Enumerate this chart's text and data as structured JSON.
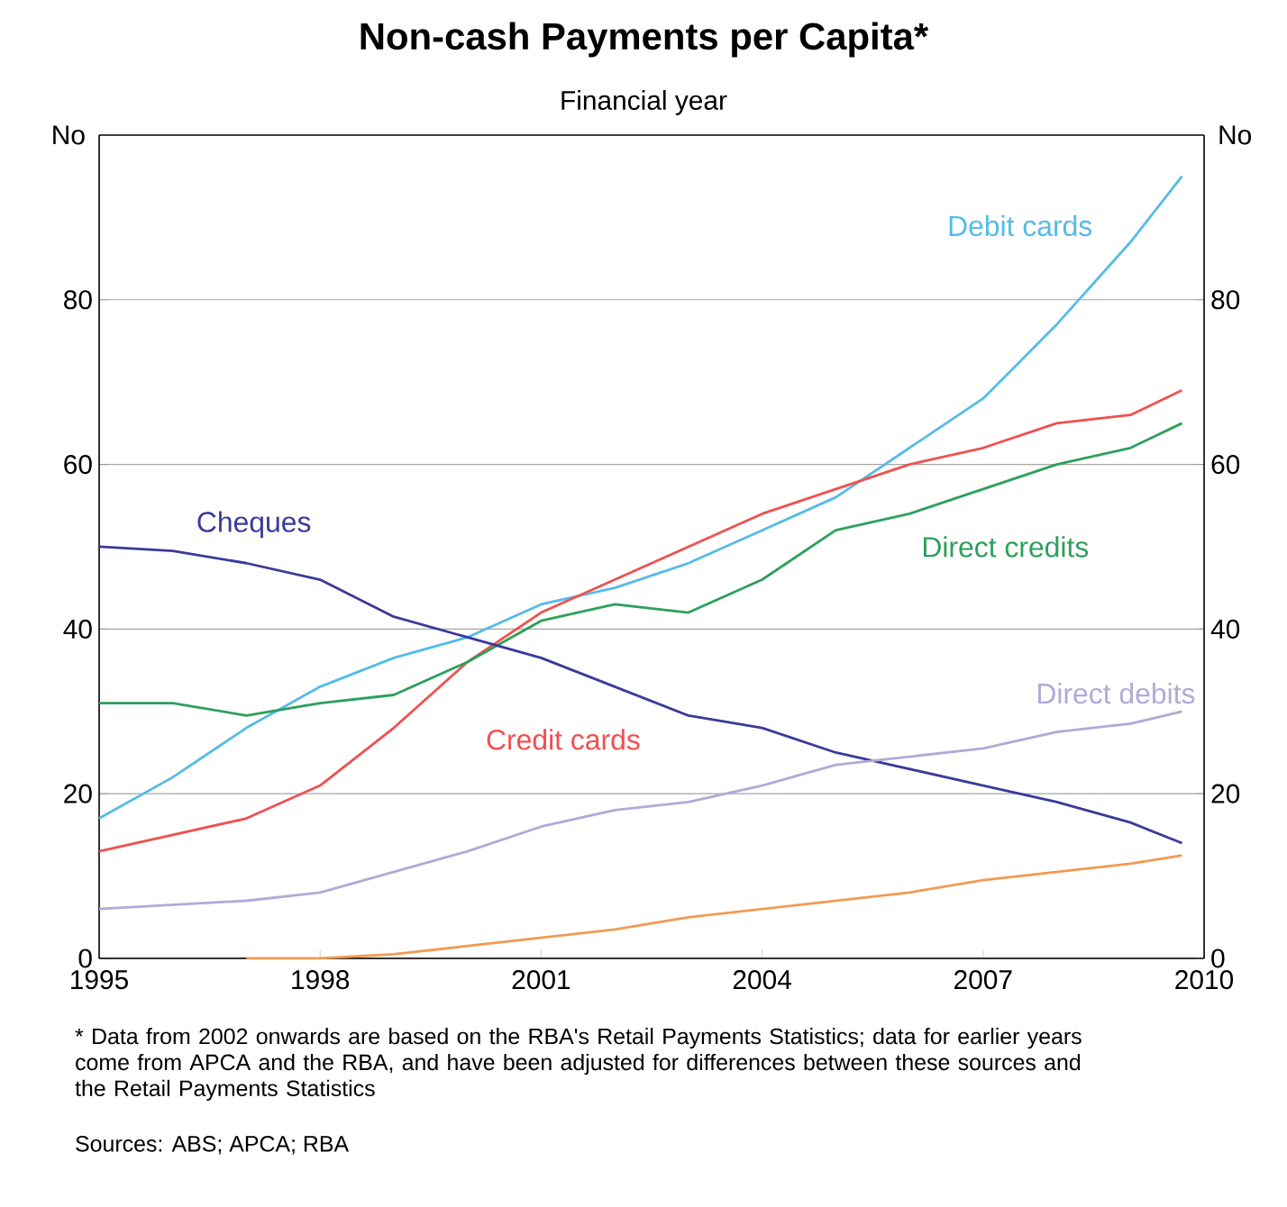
{
  "chart_data": {
    "type": "line",
    "title": "Non-cash Payments per Capita*",
    "subtitle": "Financial year",
    "ylabel": "No",
    "y2label": "No",
    "x": [
      1995,
      1996,
      1997,
      1998,
      1999,
      2000,
      2001,
      2002,
      2003,
      2004,
      2005,
      2006,
      2007,
      2008,
      2009,
      2009.7
    ],
    "series": [
      {
        "name": "Debit cards",
        "color": "#55bbe8",
        "values": [
          17,
          22,
          28,
          33,
          36.5,
          39,
          43,
          45,
          48,
          52,
          56,
          62,
          68,
          77,
          87,
          95
        ]
      },
      {
        "name": "Credit cards",
        "color": "#f05050",
        "values": [
          13,
          15,
          17,
          21,
          28,
          36,
          42,
          46,
          50,
          54,
          57,
          60,
          62,
          65,
          66,
          69
        ]
      },
      {
        "name": "Direct credits",
        "color": "#2ca05a",
        "values": [
          31,
          31,
          29.5,
          31,
          32,
          36,
          41,
          43,
          42,
          46,
          52,
          54,
          57,
          60,
          62,
          65
        ]
      },
      {
        "name": "Cheques",
        "color": "#3a3a9a",
        "values": [
          50,
          49.5,
          48,
          46,
          41.5,
          39,
          36.5,
          33,
          29.5,
          28,
          25,
          23,
          21,
          19,
          16.5,
          14
        ]
      },
      {
        "name": "Direct debits",
        "color": "#b0aad8",
        "values": [
          6,
          6.5,
          7,
          8,
          10.5,
          13,
          16,
          18,
          19,
          21,
          23.5,
          24.5,
          25.5,
          27.5,
          28.5,
          30
        ]
      },
      {
        "color": "#f39a50",
        "values": [
          null,
          null,
          0,
          0,
          0.5,
          1.5,
          2.5,
          3.5,
          5,
          6,
          7,
          8,
          9.5,
          10.5,
          11.5,
          12.5
        ]
      }
    ],
    "xlim": [
      1995,
      2010
    ],
    "xticks": [
      1995,
      1998,
      2001,
      2004,
      2007,
      2010
    ],
    "ylim": [
      0,
      100
    ],
    "yticks": [
      0,
      20,
      40,
      60,
      80
    ],
    "y2lim": [
      0,
      100
    ],
    "y2ticks": [
      0,
      20,
      40,
      60,
      80
    ],
    "grid": "y",
    "marker": "none",
    "line_style": "solid",
    "annotations": [
      "* Data from 2002 onwards are based on the RBA's Retail Payments Statistics; data for earlier years come from APCA and the RBA, and have been adjusted for differences between these sources and the Retail Payments Statistics",
      "Sources: ABS; APCA; RBA"
    ]
  }
}
